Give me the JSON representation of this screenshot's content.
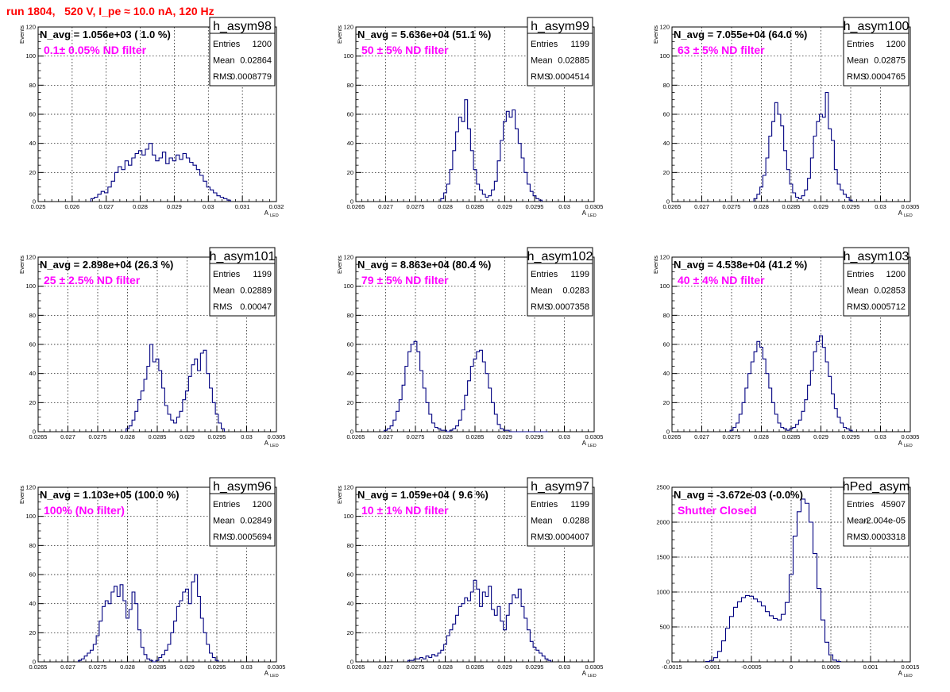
{
  "run_title": "run 1804,   520 V, I_pe ≈ 10.0 nA, 120 Hz",
  "colors": {
    "histogram": "#000080",
    "title": "#ff0000",
    "label": "#ff00ff",
    "grid": "#000000"
  },
  "chart_data": [
    {
      "type": "bar",
      "name": "h_asym98",
      "xlabel": "A",
      "xlabel_sub": "LED",
      "ylabel": "Events",
      "xlim": [
        0.025,
        0.032
      ],
      "ylim": [
        0,
        120
      ],
      "xticks": [
        "0.025",
        "0.026",
        "0.027",
        "0.028",
        "0.029",
        "0.03",
        "0.031",
        "0.032"
      ],
      "yticks": [
        "0",
        "20",
        "40",
        "60",
        "80",
        "100",
        "120"
      ],
      "avg_text": "N_avg = 1.056e+03 ( 1.0 %)",
      "filter_text": "0.1± 0.05% ND filter",
      "stats": {
        "Entries": "1200",
        "Mean": "0.02864",
        "RMS": "0.0008779"
      },
      "x": [
        0.0266,
        0.0267,
        0.0268,
        0.0269,
        0.027,
        0.0271,
        0.0272,
        0.0273,
        0.0274,
        0.0275,
        0.0276,
        0.0277,
        0.0278,
        0.0279,
        0.028,
        0.0281,
        0.0282,
        0.0283,
        0.0284,
        0.0285,
        0.0286,
        0.0287,
        0.0288,
        0.0289,
        0.029,
        0.0291,
        0.0292,
        0.0293,
        0.0294,
        0.0295,
        0.0296,
        0.0297,
        0.0298,
        0.0299,
        0.03,
        0.0301,
        0.0302,
        0.0303,
        0.0304,
        0.0305,
        0.0306
      ],
      "values": [
        2,
        3,
        5,
        7,
        6,
        10,
        14,
        20,
        24,
        22,
        28,
        25,
        30,
        33,
        35,
        32,
        36,
        40,
        32,
        28,
        30,
        34,
        26,
        30,
        28,
        32,
        29,
        33,
        30,
        27,
        25,
        22,
        18,
        14,
        10,
        8,
        6,
        4,
        3,
        2,
        1
      ]
    },
    {
      "type": "bar",
      "name": "h_asym99",
      "xlabel": "A",
      "xlabel_sub": "LED",
      "ylabel": "Events",
      "xlim": [
        0.0265,
        0.0305
      ],
      "ylim": [
        0,
        120
      ],
      "xticks": [
        "0.0265",
        "0.027",
        "0.0275",
        "0.028",
        "0.0285",
        "0.029",
        "0.0295",
        "0.03",
        "0.0305"
      ],
      "yticks": [
        "0",
        "20",
        "40",
        "60",
        "80",
        "100",
        "120"
      ],
      "avg_text": "N_avg = 5.636e+04 (51.1 %)",
      "filter_text": "50 ± 5% ND filter",
      "stats": {
        "Entries": "1199",
        "Mean": "0.02885",
        "RMS": "0.0004514"
      },
      "x": [
        0.02795,
        0.028,
        0.02805,
        0.0281,
        0.02815,
        0.0282,
        0.02825,
        0.0283,
        0.02835,
        0.0284,
        0.02845,
        0.0285,
        0.02855,
        0.0286,
        0.02865,
        0.0287,
        0.02875,
        0.0288,
        0.02885,
        0.0289,
        0.02895,
        0.029,
        0.02905,
        0.0291,
        0.02915,
        0.0292,
        0.02925,
        0.0293,
        0.02935,
        0.0294,
        0.02945,
        0.0295,
        0.02955,
        0.0296
      ],
      "values": [
        2,
        6,
        12,
        22,
        35,
        48,
        58,
        55,
        70,
        50,
        35,
        22,
        12,
        8,
        5,
        3,
        4,
        8,
        14,
        28,
        42,
        55,
        62,
        58,
        63,
        50,
        40,
        30,
        20,
        12,
        7,
        4,
        2,
        1
      ]
    },
    {
      "type": "bar",
      "name": "h_asym100",
      "xlabel": "A",
      "xlabel_sub": "LED",
      "ylabel": "Events",
      "xlim": [
        0.0265,
        0.0305
      ],
      "ylim": [
        0,
        120
      ],
      "xticks": [
        "0.0265",
        "0.027",
        "0.0275",
        "0.028",
        "0.0285",
        "0.029",
        "0.0295",
        "0.03",
        "0.0305"
      ],
      "yticks": [
        "0",
        "20",
        "40",
        "60",
        "80",
        "100",
        "120"
      ],
      "avg_text": "N_avg = 7.055e+04 (64.0 %)",
      "filter_text": "63 ± 5% ND filter",
      "stats": {
        "Entries": "1200",
        "Mean": "0.02875",
        "RMS": "0.0004765"
      },
      "x": [
        0.0279,
        0.02795,
        0.028,
        0.02805,
        0.0281,
        0.02815,
        0.0282,
        0.02825,
        0.0283,
        0.02835,
        0.0284,
        0.02845,
        0.0285,
        0.02855,
        0.0286,
        0.02865,
        0.0287,
        0.02875,
        0.0288,
        0.02885,
        0.0289,
        0.02895,
        0.029,
        0.02905,
        0.0291,
        0.02915,
        0.0292,
        0.02925,
        0.0293,
        0.02935,
        0.0294,
        0.02945,
        0.0295
      ],
      "values": [
        2,
        5,
        10,
        18,
        30,
        45,
        55,
        68,
        60,
        52,
        35,
        22,
        12,
        6,
        3,
        2,
        4,
        8,
        16,
        30,
        45,
        55,
        60,
        58,
        75,
        50,
        42,
        22,
        12,
        8,
        5,
        3,
        1
      ]
    },
    {
      "type": "bar",
      "name": "h_asym101",
      "xlabel": "A",
      "xlabel_sub": "LED",
      "ylabel": "Events",
      "xlim": [
        0.0265,
        0.0305
      ],
      "ylim": [
        0,
        120
      ],
      "xticks": [
        "0.0265",
        "0.027",
        "0.0275",
        "0.028",
        "0.0285",
        "0.029",
        "0.0295",
        "0.03",
        "0.0305"
      ],
      "yticks": [
        "0",
        "20",
        "40",
        "60",
        "80",
        "100",
        "120"
      ],
      "avg_text": "N_avg = 2.898e+04 (26.3 %)",
      "filter_text": "25 ± 2.5% ND filter",
      "stats": {
        "Entries": "1199",
        "Mean": "0.02889",
        "RMS": "0.00047"
      },
      "x": [
        0.028,
        0.02805,
        0.0281,
        0.02815,
        0.0282,
        0.02825,
        0.0283,
        0.02835,
        0.0284,
        0.02845,
        0.0285,
        0.02855,
        0.0286,
        0.02865,
        0.0287,
        0.02875,
        0.0288,
        0.02885,
        0.0289,
        0.02895,
        0.029,
        0.02905,
        0.0291,
        0.02915,
        0.0292,
        0.02925,
        0.0293,
        0.02935,
        0.0294,
        0.02945,
        0.0295,
        0.02955,
        0.0296
      ],
      "values": [
        2,
        4,
        8,
        14,
        22,
        28,
        36,
        45,
        60,
        48,
        50,
        42,
        30,
        18,
        12,
        8,
        6,
        10,
        14,
        22,
        28,
        38,
        46,
        50,
        42,
        54,
        56,
        40,
        30,
        20,
        12,
        6,
        2
      ]
    },
    {
      "type": "bar",
      "name": "h_asym102",
      "xlabel": "A",
      "xlabel_sub": "LED",
      "ylabel": "Events",
      "xlim": [
        0.0265,
        0.0305
      ],
      "ylim": [
        0,
        120
      ],
      "xticks": [
        "0.0265",
        "0.027",
        "0.0275",
        "0.028",
        "0.0285",
        "0.029",
        "0.0295",
        "0.03",
        "0.0305"
      ],
      "yticks": [
        "0",
        "20",
        "40",
        "60",
        "80",
        "100",
        "120"
      ],
      "avg_text": "N_avg = 8.863e+04 (80.4 %)",
      "filter_text": "79 ± 5% ND filter",
      "stats": {
        "Entries": "1199",
        "Mean": "0.0283",
        "RMS": "0.0007358"
      },
      "x": [
        0.027,
        0.02705,
        0.0271,
        0.02715,
        0.0272,
        0.02725,
        0.0273,
        0.02735,
        0.0274,
        0.02745,
        0.0275,
        0.02755,
        0.0276,
        0.02765,
        0.0277,
        0.02775,
        0.0278,
        0.02785,
        0.0279,
        0.02795,
        0.028,
        0.02805,
        0.0281,
        0.02815,
        0.0282,
        0.02825,
        0.0283,
        0.02835,
        0.0284,
        0.02845,
        0.0285,
        0.02855,
        0.0286,
        0.02865,
        0.0287,
        0.02875,
        0.0288,
        0.02885,
        0.0289,
        0.02895,
        0.029,
        0.02905,
        0.0291,
        0.02915,
        0.0292,
        0.02925,
        0.0293,
        0.02935,
        0.0294,
        0.02945,
        0.0295,
        0.02955,
        0.0296,
        0.02965,
        0.0297
      ],
      "values": [
        1,
        2,
        4,
        8,
        14,
        22,
        32,
        45,
        55,
        60,
        62,
        55,
        42,
        30,
        20,
        12,
        6,
        3,
        2,
        1,
        1,
        0,
        1,
        2,
        4,
        8,
        15,
        25,
        35,
        45,
        50,
        55,
        56,
        48,
        40,
        30,
        20,
        12,
        5,
        2,
        1,
        1,
        0,
        0,
        0,
        0,
        0,
        0,
        0,
        0,
        0,
        0,
        0,
        0,
        0
      ]
    },
    {
      "type": "bar",
      "name": "h_asym103",
      "xlabel": "A",
      "xlabel_sub": "LED",
      "ylabel": "Events",
      "xlim": [
        0.0265,
        0.0305
      ],
      "ylim": [
        0,
        120
      ],
      "xticks": [
        "0.0265",
        "0.027",
        "0.0275",
        "0.028",
        "0.0285",
        "0.029",
        "0.0295",
        "0.03",
        "0.0305"
      ],
      "yticks": [
        "0",
        "20",
        "40",
        "60",
        "80",
        "100",
        "120"
      ],
      "avg_text": "N_avg = 4.538e+04 (41.2 %)",
      "filter_text": "40 ± 4% ND filter",
      "stats": {
        "Entries": "1200",
        "Mean": "0.02853",
        "RMS": "0.0005712"
      },
      "x": [
        0.0275,
        0.02755,
        0.0276,
        0.02765,
        0.0277,
        0.02775,
        0.0278,
        0.02785,
        0.0279,
        0.02795,
        0.028,
        0.02805,
        0.0281,
        0.02815,
        0.0282,
        0.02825,
        0.0283,
        0.02835,
        0.0284,
        0.02845,
        0.0285,
        0.02855,
        0.0286,
        0.02865,
        0.0287,
        0.02875,
        0.0288,
        0.02885,
        0.0289,
        0.02895,
        0.029,
        0.02905,
        0.0291,
        0.02915,
        0.0292,
        0.02925,
        0.0293,
        0.02935,
        0.0294,
        0.02945,
        0.0295
      ],
      "values": [
        1,
        3,
        6,
        12,
        20,
        30,
        40,
        48,
        55,
        62,
        58,
        50,
        40,
        30,
        20,
        12,
        6,
        3,
        2,
        1,
        2,
        3,
        5,
        8,
        14,
        22,
        32,
        42,
        55,
        62,
        66,
        58,
        48,
        38,
        26,
        16,
        10,
        6,
        3,
        2,
        1
      ]
    },
    {
      "type": "bar",
      "name": "h_asym96",
      "xlabel": "A",
      "xlabel_sub": "LED",
      "ylabel": "Events",
      "xlim": [
        0.0265,
        0.0305
      ],
      "ylim": [
        0,
        120
      ],
      "xticks": [
        "0.0265",
        "0.027",
        "0.0275",
        "0.028",
        "0.0285",
        "0.029",
        "0.0295",
        "0.03",
        "0.0305"
      ],
      "yticks": [
        "0",
        "20",
        "40",
        "60",
        "80",
        "100",
        "120"
      ],
      "avg_text": "N_avg = 1.103e+05 (100.0 %)",
      "filter_text": "100% (No filter)",
      "stats": {
        "Entries": "1200",
        "Mean": "0.02849",
        "RMS": "0.0005694"
      },
      "x": [
        0.0272,
        0.02725,
        0.0273,
        0.02735,
        0.0274,
        0.02745,
        0.0275,
        0.02755,
        0.0276,
        0.02765,
        0.0277,
        0.02775,
        0.0278,
        0.02785,
        0.0279,
        0.02795,
        0.028,
        0.02805,
        0.0281,
        0.02815,
        0.0282,
        0.02825,
        0.0283,
        0.02835,
        0.0284,
        0.02845,
        0.0285,
        0.02855,
        0.0286,
        0.02865,
        0.0287,
        0.02875,
        0.0288,
        0.02885,
        0.0289,
        0.02895,
        0.029,
        0.02905,
        0.0291,
        0.02915,
        0.0292,
        0.02925,
        0.0293,
        0.02935,
        0.0294,
        0.02945,
        0.0295
      ],
      "values": [
        1,
        2,
        4,
        6,
        8,
        12,
        18,
        28,
        38,
        42,
        40,
        48,
        52,
        45,
        53,
        42,
        30,
        36,
        48,
        40,
        22,
        10,
        5,
        2,
        1,
        0,
        1,
        3,
        5,
        8,
        12,
        20,
        28,
        38,
        42,
        48,
        50,
        40,
        55,
        60,
        45,
        30,
        20,
        12,
        6,
        3,
        1
      ]
    },
    {
      "type": "bar",
      "name": "h_asym97",
      "xlabel": "A",
      "xlabel_sub": "LED",
      "ylabel": "Events",
      "xlim": [
        0.0265,
        0.0305
      ],
      "ylim": [
        0,
        120
      ],
      "xticks": [
        "0.0265",
        "0.027",
        "0.0275",
        "0.028",
        "0.0285",
        "0.029",
        "0.0295",
        "0.03",
        "0.0305"
      ],
      "yticks": [
        "0",
        "20",
        "40",
        "60",
        "80",
        "100",
        "120"
      ],
      "avg_text": "N_avg = 1.059e+04 ( 9.6 %)",
      "filter_text": "10 ± 1% ND filter",
      "stats": {
        "Entries": "1199",
        "Mean": "0.0288",
        "RMS": "0.0004007"
      },
      "x": [
        0.0274,
        0.02745,
        0.0275,
        0.02755,
        0.0276,
        0.02765,
        0.0277,
        0.02775,
        0.0278,
        0.02785,
        0.0279,
        0.02795,
        0.028,
        0.02805,
        0.0281,
        0.02815,
        0.0282,
        0.02825,
        0.0283,
        0.02835,
        0.0284,
        0.02845,
        0.0285,
        0.02855,
        0.0286,
        0.02865,
        0.0287,
        0.02875,
        0.0288,
        0.02885,
        0.0289,
        0.02895,
        0.029,
        0.02905,
        0.0291,
        0.02915,
        0.0292,
        0.02925,
        0.0293,
        0.02935,
        0.0294,
        0.02945,
        0.0295,
        0.02955,
        0.0296,
        0.02965,
        0.0297,
        0.02975
      ],
      "values": [
        1,
        1,
        2,
        2,
        3,
        2,
        4,
        3,
        5,
        4,
        6,
        8,
        12,
        18,
        22,
        26,
        32,
        38,
        40,
        44,
        42,
        48,
        56,
        50,
        38,
        48,
        45,
        52,
        36,
        32,
        38,
        28,
        22,
        32,
        40,
        46,
        44,
        50,
        38,
        30,
        22,
        14,
        10,
        8,
        6,
        4,
        2,
        1
      ]
    },
    {
      "type": "bar",
      "name": "hPed_asym",
      "xlabel": "A",
      "xlabel_sub": "LED",
      "ylabel": "",
      "xlim": [
        -0.0015,
        0.0015
      ],
      "ylim": [
        0,
        2500
      ],
      "xticks": [
        "-0.0015",
        "-0.001",
        "-0.0005",
        "0",
        "0.0005",
        "0.001",
        "0.0015"
      ],
      "yticks": [
        "0",
        "500",
        "1000",
        "1500",
        "2000",
        "2500"
      ],
      "avg_text": "N_avg = -3.672e-03 (-0.0%)",
      "filter_text": "Shutter Closed",
      "stats": {
        "Entries": "45907",
        "Mean": "-2.004e-05",
        "RMS": "0.0003318"
      },
      "x": [
        -0.00105,
        -0.001,
        -0.00095,
        -0.0009,
        -0.00085,
        -0.0008,
        -0.00075,
        -0.0007,
        -0.00065,
        -0.0006,
        -0.00055,
        -0.0005,
        -0.00045,
        -0.0004,
        -0.00035,
        -0.0003,
        -0.00025,
        -0.0002,
        -0.00015,
        -0.0001,
        -5e-05,
        0,
        5e-05,
        0.0001,
        0.00015,
        0.0002,
        0.00025,
        0.0003,
        0.00035,
        0.0004,
        0.00045,
        0.0005,
        0.00055,
        0.0006
      ],
      "values": [
        5,
        20,
        60,
        150,
        300,
        480,
        650,
        780,
        860,
        920,
        950,
        940,
        900,
        860,
        800,
        720,
        660,
        620,
        600,
        680,
        850,
        1250,
        1800,
        2150,
        2330,
        2270,
        2000,
        1550,
        1050,
        600,
        280,
        100,
        25,
        5
      ]
    }
  ]
}
